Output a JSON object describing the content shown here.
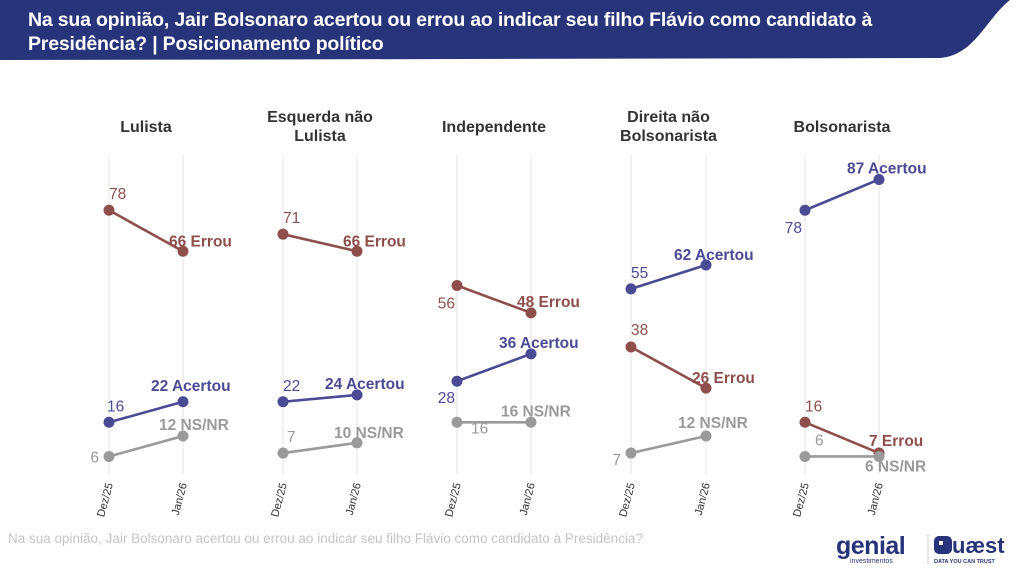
{
  "header": {
    "title": "Na sua opinião, Jair Bolsonaro acertou ou errou ao indicar seu filho Flávio como candidato à Presidência? | Posicionamento político"
  },
  "footer": {
    "question": "Na sua opinião, Jair Bolsonaro acertou ou errou ao indicar seu filho Flávio como candidato à Presidência?"
  },
  "logos": {
    "genial": "genial",
    "genial_sub": "investimentos",
    "quaest": "Quaest",
    "quaest_sub": "DATA YOU CAN TRUST"
  },
  "colors": {
    "header_bg": "#283479",
    "acertou": "#4b4a94",
    "errou": "#8e4f4c",
    "nsnr": "#9a9a9a",
    "grid": "#e6e6e6"
  },
  "chart_data": {
    "type": "line",
    "title": "Na sua opinião, Jair Bolsonaro acertou ou errou ao indicar seu filho Flávio como candidato à Presidência? | Posicionamento político",
    "x": [
      "Dez/25",
      "Jan/26"
    ],
    "xlabel": "",
    "ylabel": "",
    "ylim": [
      0,
      90
    ],
    "grid": "vertical",
    "unit": "%",
    "panels": [
      {
        "name": "Lulista",
        "title_lines": [
          "Lulista"
        ],
        "series": [
          {
            "name": "Errou",
            "key": "errou",
            "values": [
              78,
              66
            ],
            "end_label": "66 Errou"
          },
          {
            "name": "Acertou",
            "key": "acertou",
            "values": [
              16,
              22
            ],
            "end_label": "22 Acertou"
          },
          {
            "name": "NS/NR",
            "key": "nsnr",
            "values": [
              6,
              12
            ],
            "end_label": "12 NS/NR"
          }
        ]
      },
      {
        "name": "Esquerda não Lulista",
        "title_lines": [
          "Esquerda não",
          "Lulista"
        ],
        "series": [
          {
            "name": "Errou",
            "key": "errou",
            "values": [
              71,
              66
            ],
            "end_label": "66 Errou"
          },
          {
            "name": "Acertou",
            "key": "acertou",
            "values": [
              22,
              24
            ],
            "end_label": "24 Acertou"
          },
          {
            "name": "NS/NR",
            "key": "nsnr",
            "values": [
              7,
              10
            ],
            "end_label": "10 NS/NR"
          }
        ]
      },
      {
        "name": "Independente",
        "title_lines": [
          "Independente"
        ],
        "series": [
          {
            "name": "Errou",
            "key": "errou",
            "values": [
              56,
              48
            ],
            "end_label": "48 Errou"
          },
          {
            "name": "Acertou",
            "key": "acertou",
            "values": [
              28,
              36
            ],
            "end_label": "36 Acertou"
          },
          {
            "name": "NS/NR",
            "key": "nsnr",
            "values": [
              16,
              16
            ],
            "end_label": "16 NS/NR"
          }
        ]
      },
      {
        "name": "Direita não Bolsonarista",
        "title_lines": [
          "Direita não",
          "Bolsonarista"
        ],
        "series": [
          {
            "name": "Acertou",
            "key": "acertou",
            "values": [
              55,
              62
            ],
            "end_label": "62 Acertou"
          },
          {
            "name": "Errou",
            "key": "errou",
            "values": [
              38,
              26
            ],
            "end_label": "26 Errou"
          },
          {
            "name": "NS/NR",
            "key": "nsnr",
            "values": [
              7,
              12
            ],
            "end_label": "12 NS/NR"
          }
        ]
      },
      {
        "name": "Bolsonarista",
        "title_lines": [
          "Bolsonarista"
        ],
        "series": [
          {
            "name": "Acertou",
            "key": "acertou",
            "values": [
              78,
              87
            ],
            "end_label": "87 Acertou"
          },
          {
            "name": "Errou",
            "key": "errou",
            "values": [
              16,
              7
            ],
            "end_label": "7 Errou"
          },
          {
            "name": "NS/NR",
            "key": "nsnr",
            "values": [
              6,
              6
            ],
            "end_label": "6 NS/NR"
          }
        ]
      }
    ]
  }
}
